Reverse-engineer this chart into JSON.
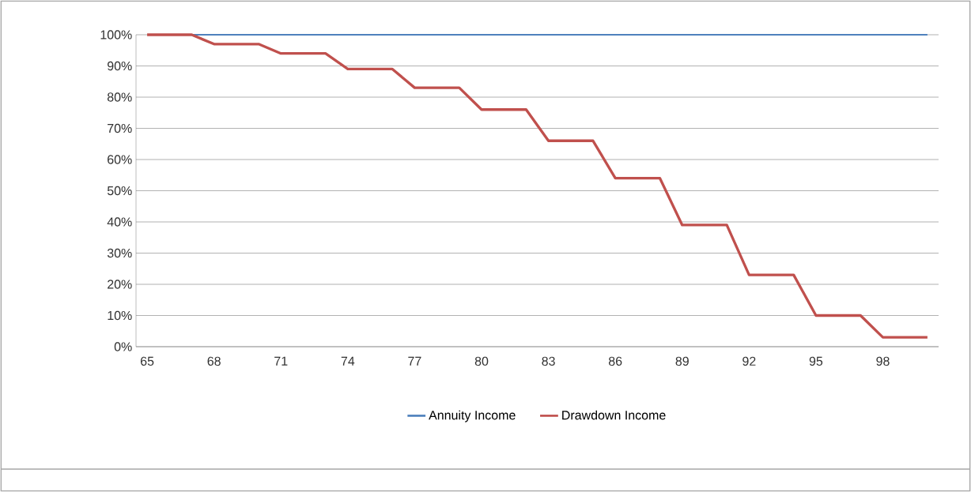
{
  "chart_data": {
    "type": "line",
    "categories": [
      "65",
      null,
      null,
      "68",
      null,
      null,
      "71",
      null,
      null,
      "74",
      null,
      null,
      "77",
      null,
      null,
      "80",
      null,
      null,
      "83",
      null,
      null,
      "86",
      null,
      null,
      "89",
      null,
      null,
      "92",
      null,
      null,
      "95",
      null,
      null,
      "98",
      null,
      null
    ],
    "series": [
      {
        "name": "Annuity Income",
        "color": "#4f81bd",
        "values": [
          null,
          null,
          100,
          100,
          100,
          100,
          100,
          100,
          100,
          100,
          100,
          100,
          100,
          100,
          100,
          100,
          100,
          100,
          100,
          100,
          100,
          100,
          100,
          100,
          100,
          100,
          100,
          100,
          100,
          100,
          100,
          100,
          100,
          100,
          100,
          100
        ]
      },
      {
        "name": "Drawdown Income",
        "color": "#c0504d",
        "values": [
          100,
          100,
          100,
          97,
          97,
          97,
          94,
          94,
          94,
          89,
          89,
          89,
          83,
          83,
          83,
          76,
          76,
          76,
          66,
          66,
          66,
          54,
          54,
          54,
          39,
          39,
          39,
          23,
          23,
          23,
          10,
          10,
          10,
          3,
          3,
          3
        ]
      }
    ],
    "ylim": [
      0,
      100
    ],
    "yticks": [
      {
        "value": 0,
        "label": "0%"
      },
      {
        "value": 10,
        "label": "10%"
      },
      {
        "value": 20,
        "label": "20%"
      },
      {
        "value": 30,
        "label": "30%"
      },
      {
        "value": 40,
        "label": "40%"
      },
      {
        "value": 50,
        "label": "50%"
      },
      {
        "value": 60,
        "label": "60%"
      },
      {
        "value": 70,
        "label": "70%"
      },
      {
        "value": 80,
        "label": "80%"
      },
      {
        "value": 90,
        "label": "90%"
      },
      {
        "value": 100,
        "label": "100%"
      }
    ],
    "grid": "y",
    "legend": "bottom",
    "marker": "none",
    "line_style": "solid"
  }
}
